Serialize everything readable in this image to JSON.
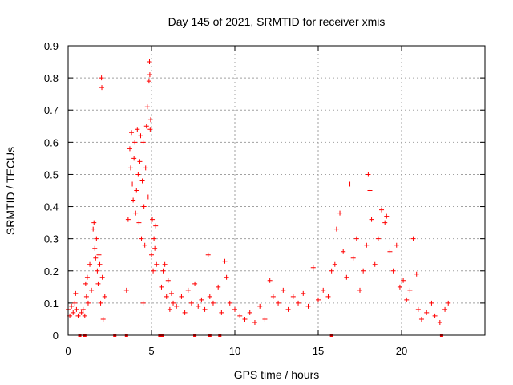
{
  "chart_data": {
    "type": "scatter",
    "title": "Day 145 of 2021, SRMTID for receiver xmis",
    "xlabel": "GPS time / hours",
    "ylabel": "SRMTID / TECUs",
    "xlim": [
      0,
      25
    ],
    "ylim": [
      0,
      0.9
    ],
    "x_ticks": [
      0,
      5,
      10,
      15,
      20
    ],
    "x_tick_labels": [
      "0",
      "5",
      "10",
      "15",
      "20"
    ],
    "y_ticks": [
      0,
      0.1,
      0.2,
      0.3,
      0.4,
      0.5,
      0.6,
      0.7,
      0.8,
      0.9
    ],
    "y_tick_labels": [
      "0",
      "0.1",
      "0.2",
      "0.3",
      "0.4",
      "0.5",
      "0.6",
      "0.7",
      "0.8",
      "0.9"
    ],
    "grid": true,
    "marker": "+",
    "color": "#ff0000",
    "series": [
      {
        "name": "SRMTID",
        "points": [
          [
            0.0,
            0.08
          ],
          [
            0.1,
            0.06
          ],
          [
            0.2,
            0.09
          ],
          [
            0.3,
            0.07
          ],
          [
            0.4,
            0.1
          ],
          [
            0.45,
            0.13
          ],
          [
            0.5,
            0.08
          ],
          [
            0.6,
            0.06
          ],
          [
            0.8,
            0.07
          ],
          [
            0.9,
            0.08
          ],
          [
            1.0,
            0.06
          ],
          [
            1.05,
            0.16
          ],
          [
            1.1,
            0.12
          ],
          [
            1.15,
            0.18
          ],
          [
            1.2,
            0.1
          ],
          [
            1.3,
            0.22
          ],
          [
            1.4,
            0.14
          ],
          [
            1.5,
            0.33
          ],
          [
            1.55,
            0.35
          ],
          [
            1.6,
            0.27
          ],
          [
            1.65,
            0.24
          ],
          [
            1.7,
            0.3
          ],
          [
            1.75,
            0.2
          ],
          [
            1.8,
            0.16
          ],
          [
            1.85,
            0.25
          ],
          [
            1.9,
            0.22
          ],
          [
            1.95,
            0.1
          ],
          [
            2.0,
            0.8
          ],
          [
            2.02,
            0.77
          ],
          [
            2.05,
            0.18
          ],
          [
            2.1,
            0.05
          ],
          [
            2.2,
            0.12
          ],
          [
            3.5,
            0.14
          ],
          [
            3.6,
            0.36
          ],
          [
            3.7,
            0.58
          ],
          [
            3.75,
            0.52
          ],
          [
            3.8,
            0.63
          ],
          [
            3.85,
            0.47
          ],
          [
            3.9,
            0.42
          ],
          [
            3.95,
            0.55
          ],
          [
            4.0,
            0.6
          ],
          [
            4.05,
            0.38
          ],
          [
            4.1,
            0.45
          ],
          [
            4.15,
            0.64
          ],
          [
            4.2,
            0.5
          ],
          [
            4.25,
            0.35
          ],
          [
            4.3,
            0.54
          ],
          [
            4.35,
            0.62
          ],
          [
            4.4,
            0.3
          ],
          [
            4.45,
            0.48
          ],
          [
            4.5,
            0.6
          ],
          [
            4.55,
            0.4
          ],
          [
            4.6,
            0.28
          ],
          [
            4.65,
            0.52
          ],
          [
            4.7,
            0.65
          ],
          [
            4.75,
            0.71
          ],
          [
            4.8,
            0.43
          ],
          [
            4.85,
            0.79
          ],
          [
            4.88,
            0.85
          ],
          [
            4.9,
            0.81
          ],
          [
            4.92,
            0.64
          ],
          [
            4.95,
            0.67
          ],
          [
            5.0,
            0.25
          ],
          [
            5.05,
            0.36
          ],
          [
            5.1,
            0.2
          ],
          [
            5.15,
            0.3
          ],
          [
            5.2,
            0.27
          ],
          [
            5.25,
            0.34
          ],
          [
            5.3,
            0.22
          ],
          [
            4.5,
            0.1
          ],
          [
            5.6,
            0.15
          ],
          [
            5.7,
            0.2
          ],
          [
            5.8,
            0.22
          ],
          [
            5.9,
            0.12
          ],
          [
            6.0,
            0.17
          ],
          [
            6.1,
            0.08
          ],
          [
            6.2,
            0.13
          ],
          [
            6.3,
            0.1
          ],
          [
            6.5,
            0.09
          ],
          [
            6.8,
            0.12
          ],
          [
            7.0,
            0.07
          ],
          [
            7.2,
            0.14
          ],
          [
            7.4,
            0.1
          ],
          [
            7.6,
            0.16
          ],
          [
            7.8,
            0.09
          ],
          [
            8.0,
            0.11
          ],
          [
            8.2,
            0.08
          ],
          [
            8.4,
            0.25
          ],
          [
            8.5,
            0.12
          ],
          [
            8.7,
            0.1
          ],
          [
            9.0,
            0.15
          ],
          [
            9.2,
            0.07
          ],
          [
            9.4,
            0.23
          ],
          [
            9.5,
            0.18
          ],
          [
            9.7,
            0.1
          ],
          [
            10.0,
            0.08
          ],
          [
            10.3,
            0.06
          ],
          [
            10.6,
            0.05
          ],
          [
            10.9,
            0.07
          ],
          [
            11.2,
            0.04
          ],
          [
            11.5,
            0.09
          ],
          [
            11.8,
            0.05
          ],
          [
            12.1,
            0.17
          ],
          [
            12.3,
            0.12
          ],
          [
            12.6,
            0.1
          ],
          [
            12.9,
            0.14
          ],
          [
            13.2,
            0.08
          ],
          [
            13.5,
            0.12
          ],
          [
            13.8,
            0.1
          ],
          [
            14.1,
            0.13
          ],
          [
            14.4,
            0.09
          ],
          [
            14.7,
            0.21
          ],
          [
            15.0,
            0.11
          ],
          [
            15.3,
            0.14
          ],
          [
            15.6,
            0.12
          ],
          [
            15.8,
            0.2
          ],
          [
            16.0,
            0.22
          ],
          [
            16.1,
            0.33
          ],
          [
            16.3,
            0.38
          ],
          [
            16.5,
            0.26
          ],
          [
            16.7,
            0.18
          ],
          [
            16.9,
            0.47
          ],
          [
            17.1,
            0.24
          ],
          [
            17.3,
            0.3
          ],
          [
            17.5,
            0.14
          ],
          [
            17.7,
            0.2
          ],
          [
            17.9,
            0.28
          ],
          [
            18.0,
            0.5
          ],
          [
            18.1,
            0.45
          ],
          [
            18.2,
            0.36
          ],
          [
            18.4,
            0.22
          ],
          [
            18.6,
            0.3
          ],
          [
            18.8,
            0.39
          ],
          [
            19.0,
            0.35
          ],
          [
            19.1,
            0.37
          ],
          [
            19.3,
            0.26
          ],
          [
            19.5,
            0.2
          ],
          [
            19.7,
            0.28
          ],
          [
            19.9,
            0.15
          ],
          [
            20.1,
            0.17
          ],
          [
            20.3,
            0.11
          ],
          [
            20.5,
            0.14
          ],
          [
            20.7,
            0.3
          ],
          [
            20.9,
            0.19
          ],
          [
            21.0,
            0.08
          ],
          [
            21.2,
            0.05
          ],
          [
            21.5,
            0.07
          ],
          [
            21.8,
            0.1
          ],
          [
            22.0,
            0.06
          ],
          [
            22.3,
            0.04
          ],
          [
            22.6,
            0.08
          ],
          [
            22.8,
            0.1
          ]
        ]
      }
    ],
    "gap_markers_x": [
      0.7,
      1.0,
      2.8,
      3.5,
      5.5,
      5.65,
      7.6,
      8.5,
      9.1,
      15.8,
      22.4
    ]
  }
}
